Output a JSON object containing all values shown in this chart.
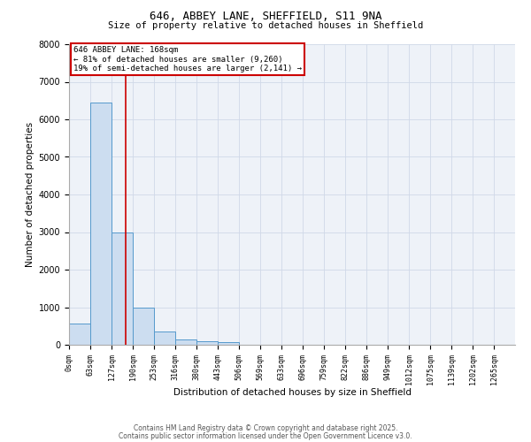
{
  "title1": "646, ABBEY LANE, SHEFFIELD, S11 9NA",
  "title2": "Size of property relative to detached houses in Sheffield",
  "xlabel": "Distribution of detached houses by size in Sheffield",
  "ylabel": "Number of detached properties",
  "bin_labels": [
    "0sqm",
    "63sqm",
    "127sqm",
    "190sqm",
    "253sqm",
    "316sqm",
    "380sqm",
    "443sqm",
    "506sqm",
    "569sqm",
    "633sqm",
    "696sqm",
    "759sqm",
    "822sqm",
    "886sqm",
    "949sqm",
    "1012sqm",
    "1075sqm",
    "1139sqm",
    "1202sqm",
    "1265sqm"
  ],
  "bar_heights": [
    560,
    6450,
    3000,
    1000,
    350,
    150,
    90,
    70,
    0,
    0,
    0,
    0,
    0,
    0,
    0,
    0,
    0,
    0,
    0,
    0
  ],
  "bar_color": "#ccddf0",
  "bar_edge_color": "#5599cc",
  "grid_color": "#d0d8e8",
  "background_color": "#eef2f8",
  "vline_color": "#cc0000",
  "annotation_text": "646 ABBEY LANE: 168sqm\n← 81% of detached houses are smaller (9,260)\n19% of semi-detached houses are larger (2,141) →",
  "annotation_box_color": "#cc0000",
  "ylim": [
    0,
    8000
  ],
  "yticks": [
    0,
    1000,
    2000,
    3000,
    4000,
    5000,
    6000,
    7000,
    8000
  ],
  "footer1": "Contains HM Land Registry data © Crown copyright and database right 2025.",
  "footer2": "Contains public sector information licensed under the Open Government Licence v3.0."
}
